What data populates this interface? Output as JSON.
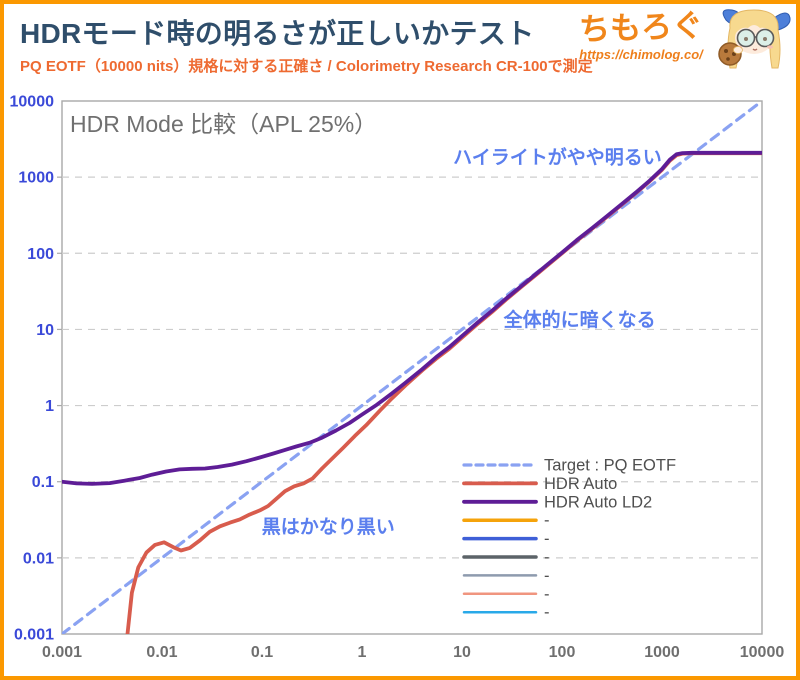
{
  "page": {
    "border_color": "#FB9800",
    "background": "#FFFFFF"
  },
  "header": {
    "title": "HDRモード時の明るさが正しいかテスト",
    "subtitle": "PQ EOTF（10000 nits）規格に対する正確さ / Colorimetry Research CR-100で測定",
    "title_color": "#2F4E6B",
    "subtitle_color": "#EE6A31"
  },
  "logo": {
    "name": "ちもろぐ",
    "url": "https://chimolog.co/",
    "color": "#F0861B",
    "mascot_icon": "blonde-girl-with-glasses-and-cookie"
  },
  "chart_data": {
    "type": "line",
    "title": "HDR Mode 比較（APL 25%）",
    "x_scale": "log",
    "y_scale": "log",
    "xlim": [
      0.001,
      10000
    ],
    "ylim": [
      0.001,
      10000
    ],
    "x_ticks": [
      "0.001",
      "0.01",
      "0.1",
      "1",
      "10",
      "100",
      "1000",
      "10000"
    ],
    "y_ticks": [
      "0.001",
      "0.01",
      "0.1",
      "1",
      "10",
      "100",
      "1000",
      "10000"
    ],
    "grid": "horizontal-dashed",
    "legend_position": "lower-right",
    "axis_colors": {
      "x_labels": "#6F6F6F",
      "y_labels": "#3A49D8"
    },
    "series": [
      {
        "name": "Target : PQ EOTF",
        "color": "#8AA2F2",
        "dashed": true,
        "width": 3.2,
        "points": [
          [
            0.001,
            0.001
          ],
          [
            10000,
            10000
          ]
        ]
      },
      {
        "name": "HDR Auto",
        "color": "#D85C4D",
        "dashed": false,
        "width": 3.8,
        "points": [
          [
            0.0045,
            0.00095
          ],
          [
            0.005,
            0.0035
          ],
          [
            0.0058,
            0.0075
          ],
          [
            0.007,
            0.0118
          ],
          [
            0.0085,
            0.0148
          ],
          [
            0.0105,
            0.016
          ],
          [
            0.013,
            0.0138
          ],
          [
            0.0155,
            0.0125
          ],
          [
            0.019,
            0.0135
          ],
          [
            0.024,
            0.017
          ],
          [
            0.03,
            0.022
          ],
          [
            0.038,
            0.026
          ],
          [
            0.048,
            0.029
          ],
          [
            0.06,
            0.032
          ],
          [
            0.075,
            0.037
          ],
          [
            0.095,
            0.042
          ],
          [
            0.115,
            0.048
          ],
          [
            0.14,
            0.06
          ],
          [
            0.17,
            0.075
          ],
          [
            0.21,
            0.087
          ],
          [
            0.26,
            0.095
          ],
          [
            0.32,
            0.11
          ],
          [
            0.4,
            0.15
          ],
          [
            0.5,
            0.2
          ],
          [
            0.65,
            0.28
          ],
          [
            0.85,
            0.4
          ],
          [
            1.1,
            0.55
          ],
          [
            1.5,
            0.85
          ],
          [
            2,
            1.25
          ],
          [
            2.8,
            1.9
          ],
          [
            4,
            2.9
          ],
          [
            5.5,
            4.1
          ],
          [
            7.5,
            5.6
          ],
          [
            10,
            7.8
          ],
          [
            14,
            11.5
          ],
          [
            20,
            17
          ],
          [
            28,
            25
          ],
          [
            40,
            37
          ],
          [
            55,
            52
          ],
          [
            75,
            73
          ],
          [
            100,
            100
          ],
          [
            140,
            145
          ],
          [
            200,
            210
          ],
          [
            280,
            300
          ],
          [
            400,
            440
          ],
          [
            550,
            620
          ],
          [
            750,
            880
          ],
          [
            1000,
            1250
          ],
          [
            1200,
            1650
          ],
          [
            1400,
            1950
          ],
          [
            1600,
            2040
          ],
          [
            2000,
            2060
          ],
          [
            10000,
            2060
          ]
        ]
      },
      {
        "name": "HDR Auto LD2",
        "color": "#5E1D96",
        "dashed": false,
        "width": 3.8,
        "points": [
          [
            0.001,
            0.1
          ],
          [
            0.0014,
            0.095
          ],
          [
            0.002,
            0.0935
          ],
          [
            0.003,
            0.096
          ],
          [
            0.0042,
            0.103
          ],
          [
            0.006,
            0.112
          ],
          [
            0.008,
            0.124
          ],
          [
            0.011,
            0.136
          ],
          [
            0.015,
            0.145
          ],
          [
            0.02,
            0.148
          ],
          [
            0.027,
            0.149
          ],
          [
            0.036,
            0.156
          ],
          [
            0.05,
            0.168
          ],
          [
            0.07,
            0.186
          ],
          [
            0.095,
            0.208
          ],
          [
            0.13,
            0.235
          ],
          [
            0.17,
            0.262
          ],
          [
            0.22,
            0.29
          ],
          [
            0.3,
            0.325
          ],
          [
            0.4,
            0.38
          ],
          [
            0.55,
            0.47
          ],
          [
            0.75,
            0.59
          ],
          [
            1,
            0.76
          ],
          [
            1.4,
            1.02
          ],
          [
            2,
            1.45
          ],
          [
            2.8,
            2.05
          ],
          [
            4,
            3.0
          ],
          [
            5.5,
            4.3
          ],
          [
            7.5,
            5.9
          ],
          [
            10,
            8.2
          ],
          [
            14,
            12
          ],
          [
            20,
            17.6
          ],
          [
            28,
            25.8
          ],
          [
            40,
            38
          ],
          [
            55,
            53.5
          ],
          [
            75,
            75
          ],
          [
            100,
            102
          ],
          [
            140,
            148
          ],
          [
            200,
            214
          ],
          [
            280,
            306
          ],
          [
            400,
            448
          ],
          [
            550,
            630
          ],
          [
            750,
            895
          ],
          [
            1000,
            1280
          ],
          [
            1200,
            1700
          ],
          [
            1400,
            2000
          ],
          [
            1600,
            2070
          ],
          [
            2000,
            2090
          ],
          [
            10000,
            2090
          ]
        ]
      },
      {
        "name": "-",
        "color": "#F5A30B",
        "dashed": false,
        "width": 3.5,
        "points": []
      },
      {
        "name": "-",
        "color": "#3E5FD7",
        "dashed": false,
        "width": 3.5,
        "points": []
      },
      {
        "name": "-",
        "color": "#5C6368",
        "dashed": false,
        "width": 3.5,
        "points": []
      },
      {
        "name": "-",
        "color": "#8E9BAE",
        "dashed": false,
        "width": 2.5,
        "points": []
      },
      {
        "name": "-",
        "color": "#F0957F",
        "dashed": false,
        "width": 2.5,
        "points": []
      },
      {
        "name": "-",
        "color": "#29A9E8",
        "dashed": false,
        "width": 2.5,
        "points": []
      }
    ],
    "annotations": [
      {
        "text": "ハイライトがやや明るい",
        "x": 90,
        "y": 1800,
        "color": "#5B7FEE"
      },
      {
        "text": "全体的に暗くなる",
        "x": 150,
        "y": 13.4,
        "color": "#5B7FEE"
      },
      {
        "text": "黒はかなり黒い",
        "x": 0.46,
        "y": 0.0255,
        "color": "#5B7FEE"
      }
    ]
  }
}
